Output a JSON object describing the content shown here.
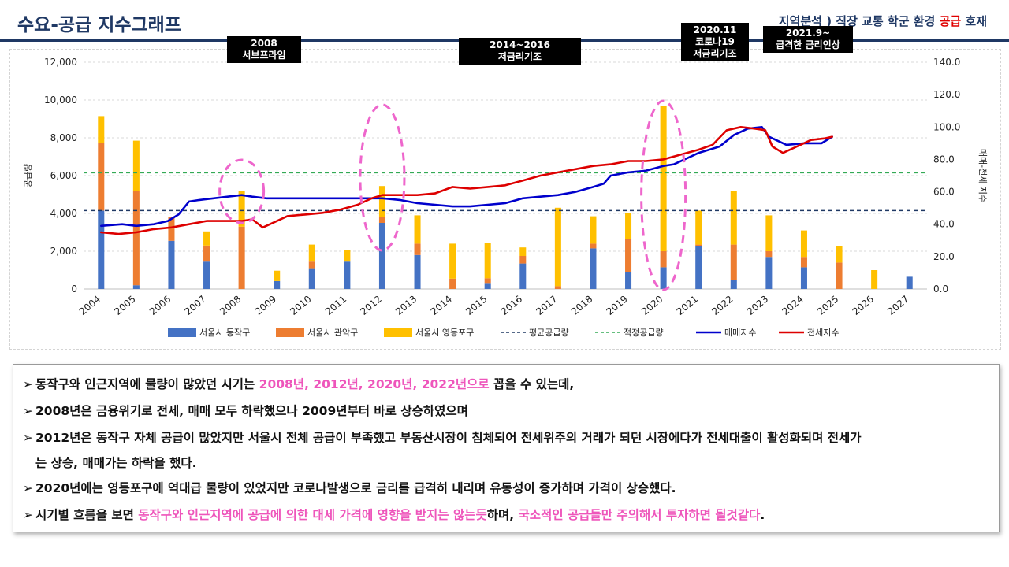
{
  "header": {
    "title": "수요-공급 지수그래프",
    "subtitle_parts": [
      "지역분석 ) 직장 교통 학군 환경 ",
      "공급",
      " 호재"
    ],
    "colors": {
      "title": "#1f3864",
      "highlight": "#e00000"
    }
  },
  "events": [
    {
      "label": "2008\n서브프라임"
    },
    {
      "label": "2014~2016\n저금리기조"
    },
    {
      "label": "2020.11\n코로나19\n저금리기조"
    },
    {
      "label": "2021.9~\n급격한 금리인상"
    }
  ],
  "chart_data": {
    "type": "bar",
    "categories": [
      "2004",
      "2005",
      "2006",
      "2007",
      "2008",
      "2009",
      "2010",
      "2011",
      "2012",
      "2013",
      "2014",
      "2015",
      "2016",
      "2017",
      "2018",
      "2019",
      "2020",
      "2021",
      "2022",
      "2023",
      "2024",
      "2025",
      "2026",
      "2027"
    ],
    "series": [
      {
        "name": "서울시 동작구",
        "color": "#4472c4",
        "values": [
          4150,
          200,
          2550,
          1450,
          0,
          420,
          1100,
          1450,
          3500,
          1800,
          0,
          320,
          1350,
          0,
          2150,
          900,
          1150,
          2250,
          500,
          1700,
          1150,
          0,
          0,
          650
        ]
      },
      {
        "name": "서울시 관악구",
        "color": "#ed7d31",
        "values": [
          3600,
          5000,
          1250,
          850,
          3300,
          0,
          350,
          0,
          300,
          600,
          550,
          250,
          400,
          150,
          250,
          1750,
          850,
          100,
          1850,
          300,
          550,
          1400,
          0,
          0
        ]
      },
      {
        "name": "서울시 영등포구",
        "color": "#ffc000",
        "values": [
          1400,
          2650,
          0,
          750,
          1900,
          550,
          900,
          600,
          1650,
          1500,
          1850,
          1850,
          450,
          4150,
          1450,
          1350,
          7700,
          1800,
          2850,
          1900,
          1400,
          850,
          1000,
          0
        ]
      }
    ],
    "reference_lines": [
      {
        "name": "평균공급량",
        "value": 4150,
        "color": "#1f3864",
        "style": "dashed"
      },
      {
        "name": "적정공급량",
        "value": 6150,
        "color": "#33aa55",
        "style": "dashed"
      }
    ],
    "index_lines": [
      {
        "name": "매매지수",
        "color": "#0000cc",
        "x": [
          2004.0,
          2004.6,
          2005.0,
          2005.5,
          2005.9,
          2006.2,
          2006.5,
          2006.8,
          2007.2,
          2007.6,
          2008.0,
          2008.3,
          2008.7,
          2009.0,
          2009.5,
          2010.0,
          2010.5,
          2011.0,
          2011.5,
          2012.0,
          2012.5,
          2013.0,
          2013.5,
          2014.0,
          2014.5,
          2015.0,
          2015.5,
          2016.0,
          2016.5,
          2017.0,
          2017.5,
          2018.0,
          2018.3,
          2018.5,
          2019.0,
          2019.5,
          2020.0,
          2020.3,
          2020.6,
          2021.0,
          2021.3,
          2021.6,
          2022.0,
          2022.4,
          2022.8,
          2023.0,
          2023.5,
          2024.0,
          2024.5,
          2024.8
        ],
        "values": [
          39,
          40,
          39,
          40,
          42,
          46,
          54,
          55,
          56,
          57,
          58,
          57,
          56,
          56,
          56,
          56,
          56,
          56,
          56,
          56,
          55,
          53,
          52,
          51,
          51,
          52,
          53,
          56,
          57,
          58,
          60,
          63,
          65,
          70,
          72,
          73,
          76,
          77,
          80,
          84,
          86,
          88,
          95,
          99,
          100,
          94,
          89,
          90,
          90,
          94
        ]
      },
      {
        "name": "전세지수",
        "color": "#dd0000",
        "x": [
          2004.0,
          2004.5,
          2005.0,
          2005.5,
          2006.0,
          2006.5,
          2007.0,
          2007.5,
          2008.0,
          2008.3,
          2008.6,
          2008.9,
          2009.3,
          2009.8,
          2010.3,
          2010.8,
          2011.3,
          2011.7,
          2012.0,
          2012.5,
          2013.0,
          2013.5,
          2014.0,
          2014.5,
          2015.0,
          2015.5,
          2016.0,
          2016.5,
          2017.0,
          2017.5,
          2018.0,
          2018.5,
          2019.0,
          2019.5,
          2020.0,
          2020.5,
          2021.0,
          2021.4,
          2021.8,
          2022.2,
          2022.6,
          2022.9,
          2023.1,
          2023.4,
          2023.8,
          2024.2,
          2024.6,
          2024.8
        ],
        "values": [
          35,
          34,
          35,
          37,
          38,
          40,
          42,
          42,
          42,
          43,
          38,
          41,
          45,
          46,
          47,
          49,
          52,
          56,
          58,
          58,
          58,
          59,
          63,
          62,
          63,
          64,
          67,
          70,
          72,
          74,
          76,
          77,
          79,
          79,
          80,
          83,
          86,
          89,
          98,
          100,
          99,
          98,
          88,
          84,
          88,
          92,
          93,
          94
        ]
      }
    ],
    "ylim_left": [
      0,
      12000
    ],
    "ylim_right": [
      0,
      140
    ],
    "yticks_left": [
      "0",
      "2,000",
      "4,000",
      "6,000",
      "8,000",
      "10,000",
      "12,000"
    ],
    "yticks_right": [
      "0.0",
      "20.0",
      "40.0",
      "60.0",
      "80.0",
      "100.0",
      "120.0",
      "140.0"
    ],
    "ylabel_left": "공급량",
    "ylabel_right": "매매-전세 지수",
    "xlabel": "",
    "legend_position": "bottom",
    "grid": "horizontal-dashed",
    "highlighted_years": [
      "2008",
      "2012",
      "2020"
    ]
  },
  "notes": [
    {
      "parts": [
        {
          "text": "동작구와 인근지역에 물량이 많았던 시기는 ",
          "pink": false
        },
        {
          "text": "2008년, 2012년, 2020년, 2022년으로",
          "pink": true
        },
        {
          "text": " 꼽을 수 있는데,",
          "pink": false
        }
      ]
    },
    {
      "parts": [
        {
          "text": "2008년은 금융위기로 전세, 매매 모두 하락했으나 2009년부터 바로 상승하였으며",
          "pink": false
        }
      ]
    },
    {
      "parts": [
        {
          "text": "2012년은 동작구 자체 공급이 많았지만 서울시 전체 공급이 부족했고 부동산시장이 침체되어 전세위주의 거래가 되던 시장에다가 전세대출이 활성화되며 전세가",
          "pink": false
        }
      ]
    },
    {
      "cont": true,
      "parts": [
        {
          "text": "는 상승, 매매가는 하락을 했다.",
          "pink": false
        }
      ]
    },
    {
      "parts": [
        {
          "text": "2020년에는 영등포구에 역대급 물량이 있었지만 코로나발생으로 금리를 급격히 내리며 유동성이 증가하며 가격이 상승했다.",
          "pink": false
        }
      ]
    },
    {
      "parts": [
        {
          "text": "시기별 흐름을 보면 ",
          "pink": false
        },
        {
          "text": "동작구와 인근지역에 공급에 의한 대세 가격에 영향을 받지는 않는듯",
          "pink": true
        },
        {
          "text": "하며, ",
          "pink": false
        },
        {
          "text": "국소적인 공급들만 주의해서 투자하면 될것같다",
          "pink": true
        },
        {
          "text": ".",
          "pink": false
        }
      ]
    }
  ]
}
